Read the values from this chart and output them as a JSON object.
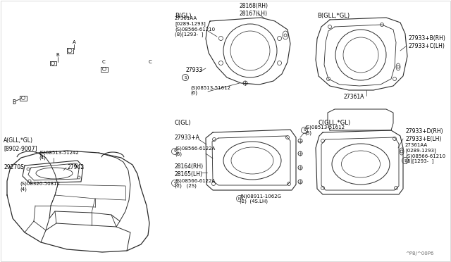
{
  "bg_color": "#ffffff",
  "line_color": "#2a2a2a",
  "text_color": "#000000",
  "watermark": "^P8/^00P6",
  "sections": {
    "A_label": "A(GLL,*GL)\n[8902-9007]",
    "B_GL_label": "B(GL)",
    "B_GLL_label": "B(GLL,*GL)",
    "C_GL_label": "C(GL)",
    "C_GLL_label": "C(GLL,*GL)"
  },
  "parts": {
    "part_29270S": "29270S",
    "part_27942": "27942",
    "part_08320": "(S)08320-50812\n(4)",
    "part_08513_51242": "(S)08513-51242\n(4)",
    "part_28168": "28168(RH)\n28167(LH)",
    "part_27361AA_B": "27361AA\n[0289-1293]\n(S)08566-61210\n(8)[1293-  ]",
    "part_27933_B": "27933",
    "part_08513_51612_6": "(S)08513-51612\n(6)",
    "part_27933B": "27933+B(RH)\n27933+C(LH)",
    "part_27361A": "27361A",
    "part_08513_51612_8": "(S)08513-51612\n(8)",
    "part_27933A": "27933+A",
    "part_08566_6122A_8": "(S)08566-6122A\n(8)",
    "part_28164": "28164(RH)\n28165(LH)",
    "part_08566_6122A_2": "(S)08566-6122A\n(2)   (2S)",
    "part_08911": "(N)08911-1062G\n(2)  (4S.LH)",
    "part_27933D": "27933+D(RH)\n27933+E(LH)",
    "part_27361AA_C": "27361AA\n[0289-1293]\n(S)08566-61210\n(8)[1293-  ]"
  }
}
